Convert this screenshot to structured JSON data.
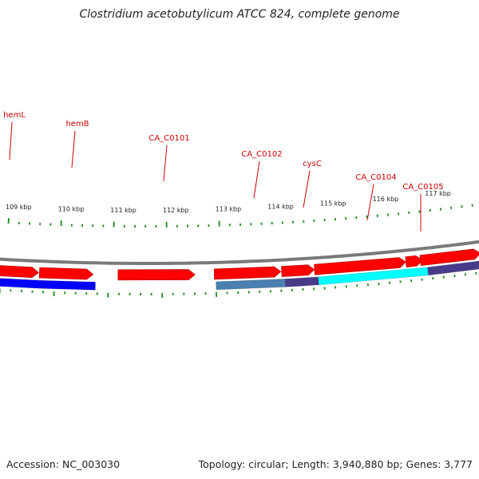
{
  "title": "Clostridium acetobutylicum ATCC 824, complete genome",
  "footer": {
    "accession": "Accession: NC_003030",
    "summary": "Topology: circular; Length: 3,940,880 bp; Genes: 3,777"
  },
  "colors": {
    "backbone": "#7a7a7a",
    "cds_arrow": "#ff0000",
    "tick": "#1a8a1a",
    "label": "#cc0000",
    "label_line": "#cc0000"
  },
  "map": {
    "units": "kbp",
    "tick_labels": [
      "109 kbp",
      "110 kbp",
      "111 kbp",
      "112 kbp",
      "113 kbp",
      "114 kbp",
      "115 kbp",
      "116 kbp",
      "117 kbp"
    ],
    "genes": [
      {
        "name": "hemL",
        "color": "#0000ff"
      },
      {
        "name": "hemB",
        "color": "#0000ff"
      },
      {
        "name": "CA_C0101",
        "color": ""
      },
      {
        "name": "CA_C0102",
        "color": "#4a7fb0"
      },
      {
        "name": "cysC",
        "color": "#4a3a8a"
      },
      {
        "name": "CA_C0104",
        "color": "#00ffff"
      },
      {
        "name": "CA_C0105",
        "color": "#4a3a8a"
      }
    ]
  }
}
